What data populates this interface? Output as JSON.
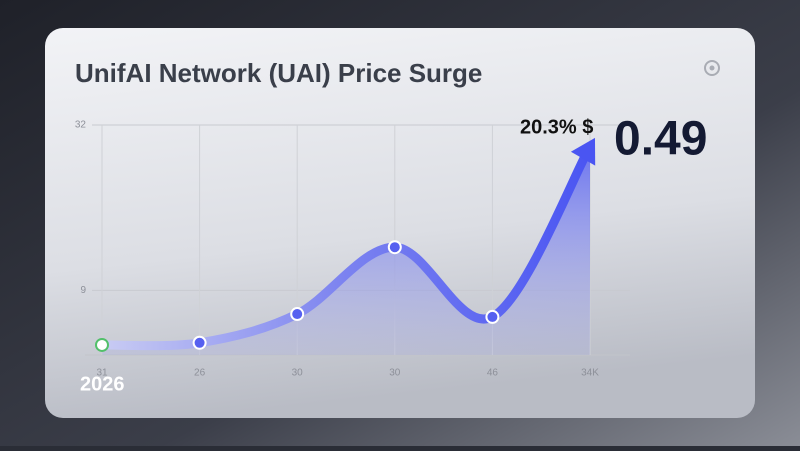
{
  "chart_data": {
    "type": "line",
    "title": "UnifAI Network (UAI) Price Surge",
    "categories": [
      "31",
      "26",
      "30",
      "30",
      "46",
      "34K"
    ],
    "values": [
      1.4,
      1.7,
      5.7,
      15,
      5.3,
      29
    ],
    "color": "#5660f0",
    "ylim": [
      0,
      32
    ],
    "yticks": [
      9,
      32
    ],
    "grid": true,
    "change_label": "20.3% $",
    "price_label": "0.49",
    "year_label": "2026"
  }
}
